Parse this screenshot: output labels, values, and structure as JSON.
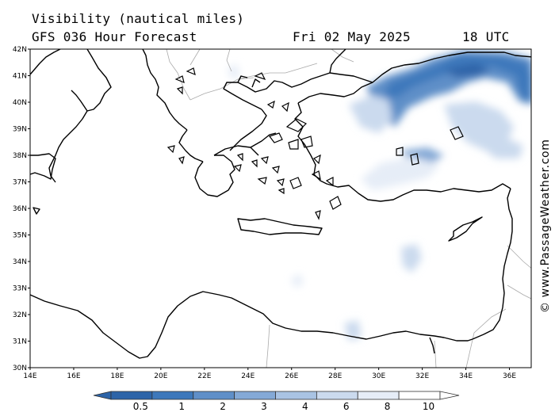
{
  "header": {
    "title": "Visibility (nautical miles)",
    "subtitle": "GFS 036 Hour Forecast",
    "date": "Fri 02 May 2025",
    "time": "18 UTC"
  },
  "credit": "© www.PassageWeather.com",
  "map": {
    "lon_range": [
      14,
      37
    ],
    "lat_range": [
      30,
      42
    ],
    "lat_ticks": [
      "30N",
      "31N",
      "32N",
      "33N",
      "34N",
      "35N",
      "36N",
      "37N",
      "38N",
      "39N",
      "40N",
      "41N",
      "42N"
    ],
    "lon_ticks": [
      "14E",
      "16E",
      "18E",
      "20E",
      "22E",
      "24E",
      "26E",
      "28E",
      "30E",
      "32E",
      "34E",
      "36E"
    ]
  },
  "colorbar": {
    "labels": [
      "0.5",
      "1",
      "2",
      "3",
      "4",
      "6",
      "8",
      "10"
    ],
    "colors": [
      "#2d64a8",
      "#3d78bb",
      "#5f8fc8",
      "#84a9d6",
      "#a9c3e3",
      "#cbdaee",
      "#e6edf7",
      "#ffffff"
    ]
  }
}
